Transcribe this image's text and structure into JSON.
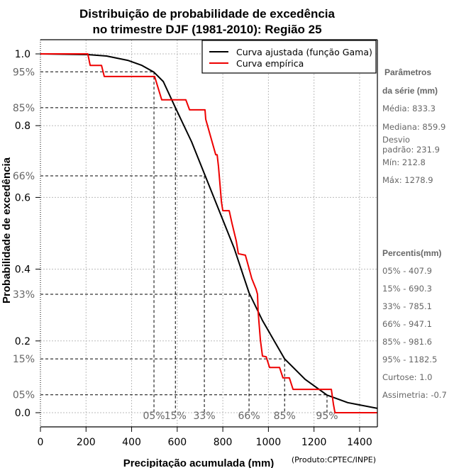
{
  "chart_data": {
    "type": "line",
    "title": [
      "Distribuição de probabilidade de excedência",
      "no trimestre DJF (1981-2010): Região 25"
    ],
    "xlabel": "Precipitação acumulada (mm)",
    "ylabel": "Probabilidade de excedência",
    "xlim": [
      0,
      1478
    ],
    "ylim": [
      0,
      1
    ],
    "x_ticks": [
      0,
      200,
      400,
      600,
      800,
      1000,
      1200,
      1400
    ],
    "x_tick_labels": [
      "0",
      "200",
      "400",
      "600",
      "800",
      "1000",
      "1200",
      "1400"
    ],
    "y_ticks": [
      0.0,
      0.2,
      0.4,
      0.6,
      0.8,
      1.0
    ],
    "y_tick_labels": [
      "0.0",
      "0.2",
      "0.4",
      "0.6",
      "0.8",
      "1.0"
    ],
    "grid": true,
    "legend_position": "top-right",
    "series": [
      {
        "name": "Curva ajustada (função Gama)",
        "color": "#000000",
        "x": [
          0,
          208,
          290,
          383,
          445,
          498,
          539,
          592,
          663,
          719,
          788,
          850,
          915,
          974,
          1071,
          1161,
          1257,
          1348,
          1478
        ],
        "y": [
          1.0,
          0.998,
          0.994,
          0.982,
          0.968,
          0.949,
          0.923,
          0.85,
          0.755,
          0.666,
          0.557,
          0.458,
          0.334,
          0.257,
          0.15,
          0.093,
          0.049,
          0.028,
          0.012
        ]
      },
      {
        "name": "Curva empírica",
        "color": "#ee0000",
        "x": [
          0,
          208,
          218,
          268,
          280,
          501,
          532,
          638,
          654,
          722,
          725,
          769,
          775,
          781,
          794,
          800,
          828,
          840,
          859,
          868,
          899,
          912,
          927,
          946,
          952,
          955,
          965,
          974,
          990,
          1005,
          1049,
          1064,
          1092,
          1108,
          1276,
          1285,
          1292,
          1478
        ],
        "y": [
          1.0,
          1.0,
          0.968,
          0.968,
          0.937,
          0.937,
          0.872,
          0.872,
          0.844,
          0.844,
          0.818,
          0.719,
          0.719,
          0.686,
          0.587,
          0.563,
          0.563,
          0.528,
          0.478,
          0.443,
          0.439,
          0.409,
          0.374,
          0.344,
          0.33,
          0.281,
          0.202,
          0.158,
          0.156,
          0.126,
          0.126,
          0.097,
          0.097,
          0.065,
          0.065,
          0.024,
          0.0,
          0.0
        ]
      }
    ],
    "percentile_guides": [
      {
        "label": "95%",
        "level": 0.95,
        "x": 498,
        "x_label": "05%"
      },
      {
        "label": "85%",
        "level": 0.85,
        "x": 592,
        "x_label": "15%"
      },
      {
        "label": "66%",
        "level": 0.66,
        "x": 719,
        "x_label": "33%"
      },
      {
        "label": "33%",
        "level": 0.33,
        "x": 915,
        "x_label": "66%"
      },
      {
        "label": "15%",
        "level": 0.15,
        "x": 1071,
        "x_label": "85%"
      },
      {
        "label": "05%",
        "level": 0.05,
        "x": 1257,
        "x_label": "95%"
      }
    ]
  },
  "sidebar": {
    "params_title_1": "Parâmetros",
    "params_title_2": "da série (mm)",
    "media": "Média: 833.3",
    "mediana": "Mediana: 859.9",
    "desvio_1": "Desvio",
    "desvio_2": "padrão: 231.9",
    "min": "Mín: 212.8",
    "max": "Máx: 1278.9",
    "percentis_title": "Percentis(mm)",
    "percentis": [
      "05% - 407.9",
      "15% - 690.3",
      "33% - 785.1",
      "66% - 947.1",
      "85% - 981.6",
      "95% - 1182.5"
    ],
    "curtose": "Curtose: 1.0",
    "assimetria": "Assimetria: -0.7"
  },
  "credit": "(Produto:CPTEC/INPE)"
}
